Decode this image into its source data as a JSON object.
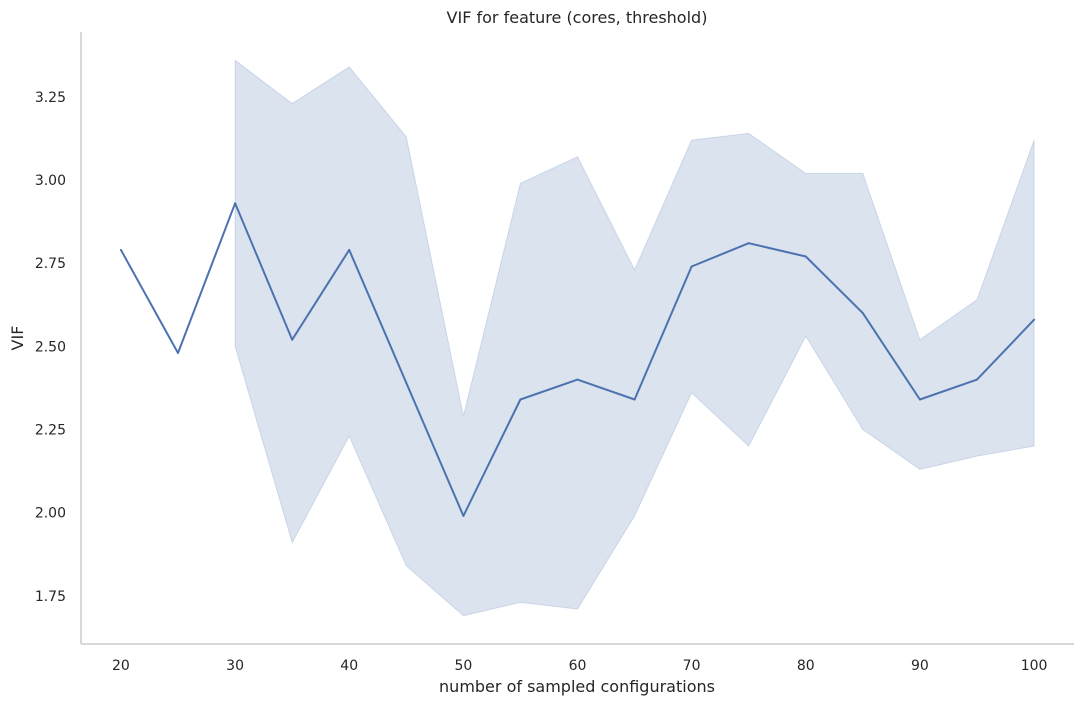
{
  "chart_data": {
    "type": "line",
    "title": "VIF for feature (cores, threshold)",
    "xlabel": "number of sampled configurations",
    "ylabel": "VIF",
    "xlim": [
      16.5,
      103.5
    ],
    "ylim": [
      1.605,
      3.445
    ],
    "x_ticks": [
      20,
      30,
      40,
      50,
      60,
      70,
      80,
      90,
      100
    ],
    "y_ticks": [
      1.75,
      2.0,
      2.25,
      2.5,
      2.75,
      3.0,
      3.25
    ],
    "x_tick_labels": [
      "20",
      "30",
      "40",
      "50",
      "60",
      "70",
      "80",
      "90",
      "100"
    ],
    "y_tick_labels": [
      "1.75",
      "2.00",
      "2.25",
      "2.50",
      "2.75",
      "3.00",
      "3.25"
    ],
    "grid": false,
    "line_color": "#4c72b0",
    "band_color": "#4c72b0",
    "series": [
      {
        "x": [
          20,
          25,
          30,
          35,
          40,
          45,
          50,
          55,
          60,
          65,
          70,
          75,
          80,
          85,
          90,
          95,
          100
        ],
        "values": [
          2.79,
          2.48,
          2.93,
          2.52,
          2.79,
          2.39,
          1.99,
          2.34,
          2.4,
          2.34,
          2.74,
          2.81,
          2.77,
          2.6,
          2.34,
          2.4,
          2.58
        ]
      }
    ],
    "confidence_band": {
      "x": [
        30,
        35,
        40,
        45,
        50,
        55,
        60,
        65,
        70,
        75,
        80,
        85,
        90,
        95,
        100
      ],
      "lower": [
        2.5,
        1.91,
        2.23,
        1.84,
        1.69,
        1.73,
        1.71,
        1.99,
        2.36,
        2.2,
        2.53,
        2.25,
        2.13,
        2.17,
        2.2
      ],
      "upper": [
        3.36,
        3.23,
        3.34,
        3.13,
        2.29,
        2.99,
        3.07,
        2.73,
        3.12,
        3.14,
        3.02,
        3.02,
        2.52,
        2.64,
        3.12
      ]
    }
  }
}
